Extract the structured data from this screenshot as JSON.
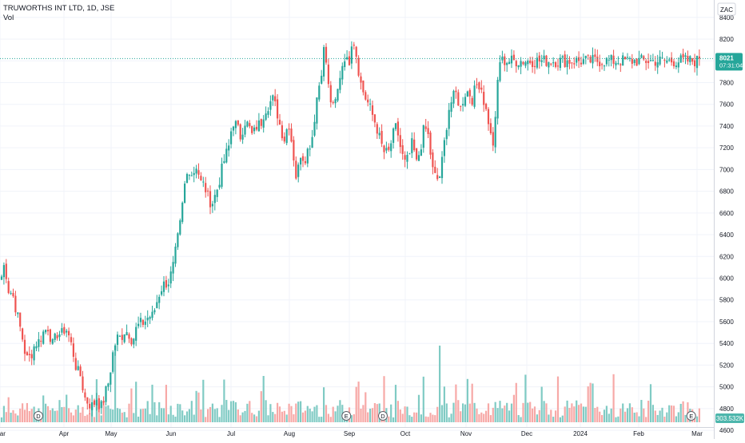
{
  "header": {
    "symbol_title": "TRUWORTHS INT LTD, 1D, JSE",
    "volume_label": "Vol"
  },
  "price_axis": {
    "currency": "ZAC",
    "current_price": "8021",
    "countdown": "07:31:04",
    "volume_readout": "303.532K"
  },
  "colors": {
    "up": "#26a69a",
    "down": "#ef5350",
    "up_volume": "#80cbc4",
    "down_volume": "#f7a9a7",
    "grid": "#f0f3fa",
    "axis_text": "#131722",
    "price_line": "#26a69a",
    "volume_tag": "#4db6ac"
  },
  "chart_data": {
    "type": "candlestick",
    "title": "TRUWORTHS INT LTD, 1D, JSE",
    "y_unit": "ZAC",
    "ylim": [
      4520,
      8560
    ],
    "y_ticks": [
      4600,
      4800,
      5000,
      5200,
      5400,
      5600,
      5800,
      6000,
      6200,
      6400,
      6600,
      6800,
      7000,
      7200,
      7400,
      7600,
      7800,
      8000,
      8200,
      8400
    ],
    "x_tick_labels": [
      "Mar",
      "Apr",
      "May",
      "Jun",
      "Jul",
      "Aug",
      "Sep",
      "Oct",
      "Nov",
      "Dec",
      "2024",
      "Feb",
      "Mar"
    ],
    "grid": true,
    "current_price": 8021,
    "events": [
      {
        "label": "D",
        "month_offset": 0.6
      },
      {
        "label": "E",
        "month_offset": 5.95
      },
      {
        "label": "D",
        "month_offset": 6.6
      },
      {
        "label": "E",
        "month_offset": 11.9
      }
    ],
    "anchors": [
      [
        0,
        5950
      ],
      [
        6,
        6150
      ],
      [
        10,
        5900
      ],
      [
        16,
        5850
      ],
      [
        22,
        5650
      ],
      [
        28,
        5450
      ],
      [
        33,
        5250
      ],
      [
        38,
        5280
      ],
      [
        44,
        5400
      ],
      [
        49,
        5420
      ],
      [
        54,
        5500
      ],
      [
        60,
        5550
      ],
      [
        66,
        5380
      ],
      [
        72,
        5500
      ],
      [
        77,
        5480
      ],
      [
        82,
        5550
      ],
      [
        87,
        5450
      ],
      [
        92,
        5300
      ],
      [
        96,
        5150
      ],
      [
        101,
        5100
      ],
      [
        106,
        4900
      ],
      [
        111,
        4850
      ],
      [
        116,
        4820
      ],
      [
        121,
        4900
      ],
      [
        126,
        4800
      ],
      [
        131,
        4920
      ],
      [
        136,
        5050
      ],
      [
        141,
        5300
      ],
      [
        146,
        5450
      ],
      [
        151,
        5450
      ],
      [
        156,
        5520
      ],
      [
        161,
        5500
      ],
      [
        166,
        5420
      ],
      [
        171,
        5550
      ],
      [
        176,
        5580
      ],
      [
        181,
        5600
      ],
      [
        186,
        5650
      ],
      [
        191,
        5650
      ],
      [
        196,
        5780
      ],
      [
        201,
        5900
      ],
      [
        206,
        5950
      ],
      [
        211,
        5970
      ],
      [
        216,
        6080
      ],
      [
        221,
        6300
      ],
      [
        226,
        6520
      ],
      [
        231,
        6850
      ],
      [
        236,
        7020
      ],
      [
        241,
        6950
      ],
      [
        246,
        7050
      ],
      [
        251,
        6880
      ],
      [
        256,
        6850
      ],
      [
        261,
        6720
      ],
      [
        266,
        6700
      ],
      [
        271,
        6800
      ],
      [
        276,
        6950
      ],
      [
        281,
        7100
      ],
      [
        286,
        7200
      ],
      [
        291,
        7450
      ],
      [
        296,
        7400
      ],
      [
        301,
        7300
      ],
      [
        306,
        7450
      ],
      [
        311,
        7400
      ],
      [
        316,
        7300
      ],
      [
        321,
        7400
      ],
      [
        326,
        7420
      ],
      [
        331,
        7550
      ],
      [
        336,
        7600
      ],
      [
        341,
        7650
      ],
      [
        346,
        7550
      ],
      [
        351,
        7380
      ],
      [
        356,
        7280
      ],
      [
        361,
        7450
      ],
      [
        366,
        7200
      ],
      [
        371,
        6900
      ],
      [
        376,
        7150
      ],
      [
        381,
        7100
      ],
      [
        386,
        7200
      ],
      [
        391,
        7320
      ],
      [
        396,
        7650
      ],
      [
        401,
        7850
      ],
      [
        406,
        8150
      ],
      [
        411,
        7750
      ],
      [
        416,
        7550
      ],
      [
        421,
        7650
      ],
      [
        426,
        7900
      ],
      [
        431,
        8050
      ],
      [
        436,
        7950
      ],
      [
        441,
        8250
      ],
      [
        446,
        8050
      ],
      [
        451,
        7800
      ],
      [
        456,
        7680
      ],
      [
        461,
        7600
      ],
      [
        466,
        7500
      ],
      [
        471,
        7400
      ],
      [
        476,
        7250
      ],
      [
        481,
        7150
      ],
      [
        486,
        7150
      ],
      [
        491,
        7300
      ],
      [
        496,
        7400
      ],
      [
        501,
        7200
      ],
      [
        506,
        7050
      ],
      [
        511,
        7100
      ],
      [
        516,
        7250
      ],
      [
        521,
        7050
      ],
      [
        526,
        7200
      ],
      [
        531,
        7400
      ],
      [
        536,
        7300
      ],
      [
        541,
        7000
      ],
      [
        546,
        6900
      ],
      [
        551,
        6950
      ],
      [
        556,
        7250
      ],
      [
        561,
        7550
      ],
      [
        566,
        7650
      ],
      [
        571,
        7700
      ],
      [
        576,
        7550
      ],
      [
        581,
        7700
      ],
      [
        586,
        7720
      ],
      [
        591,
        7650
      ],
      [
        596,
        7780
      ],
      [
        601,
        7800
      ],
      [
        606,
        7600
      ],
      [
        611,
        7450
      ],
      [
        614,
        7300
      ],
      [
        618,
        7220
      ],
      [
        621,
        7600
      ],
      [
        624,
        8000
      ]
    ],
    "volume_max": 1000000
  }
}
